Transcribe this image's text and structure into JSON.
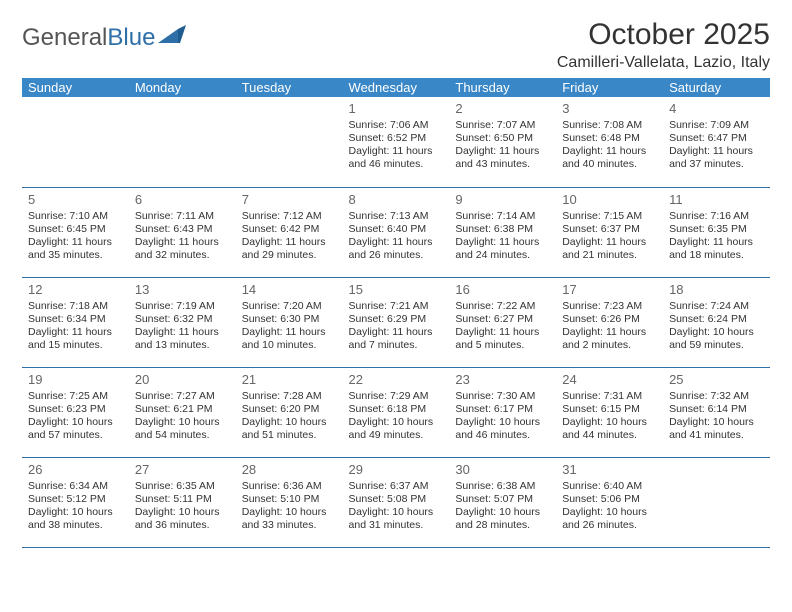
{
  "logo": {
    "text_gray": "General",
    "text_blue": "Blue"
  },
  "title": "October 2025",
  "location": "Camilleri-Vallelata, Lazio, Italy",
  "colors": {
    "header_bg": "#3a87c7",
    "header_text": "#ffffff",
    "rule": "#2f6fa8",
    "body_text": "#333333",
    "logo_blue": "#2f6fa8"
  },
  "typography": {
    "title_fontsize": 30,
    "location_fontsize": 16,
    "dayheader_fontsize": 13,
    "daynum_fontsize": 13,
    "cell_fontsize": 10.5
  },
  "day_headers": [
    "Sunday",
    "Monday",
    "Tuesday",
    "Wednesday",
    "Thursday",
    "Friday",
    "Saturday"
  ],
  "weeks": [
    [
      {
        "num": "",
        "sunrise": "",
        "sunset": "",
        "daylight": ""
      },
      {
        "num": "",
        "sunrise": "",
        "sunset": "",
        "daylight": ""
      },
      {
        "num": "",
        "sunrise": "",
        "sunset": "",
        "daylight": ""
      },
      {
        "num": "1",
        "sunrise": "Sunrise: 7:06 AM",
        "sunset": "Sunset: 6:52 PM",
        "daylight": "Daylight: 11 hours and 46 minutes."
      },
      {
        "num": "2",
        "sunrise": "Sunrise: 7:07 AM",
        "sunset": "Sunset: 6:50 PM",
        "daylight": "Daylight: 11 hours and 43 minutes."
      },
      {
        "num": "3",
        "sunrise": "Sunrise: 7:08 AM",
        "sunset": "Sunset: 6:48 PM",
        "daylight": "Daylight: 11 hours and 40 minutes."
      },
      {
        "num": "4",
        "sunrise": "Sunrise: 7:09 AM",
        "sunset": "Sunset: 6:47 PM",
        "daylight": "Daylight: 11 hours and 37 minutes."
      }
    ],
    [
      {
        "num": "5",
        "sunrise": "Sunrise: 7:10 AM",
        "sunset": "Sunset: 6:45 PM",
        "daylight": "Daylight: 11 hours and 35 minutes."
      },
      {
        "num": "6",
        "sunrise": "Sunrise: 7:11 AM",
        "sunset": "Sunset: 6:43 PM",
        "daylight": "Daylight: 11 hours and 32 minutes."
      },
      {
        "num": "7",
        "sunrise": "Sunrise: 7:12 AM",
        "sunset": "Sunset: 6:42 PM",
        "daylight": "Daylight: 11 hours and 29 minutes."
      },
      {
        "num": "8",
        "sunrise": "Sunrise: 7:13 AM",
        "sunset": "Sunset: 6:40 PM",
        "daylight": "Daylight: 11 hours and 26 minutes."
      },
      {
        "num": "9",
        "sunrise": "Sunrise: 7:14 AM",
        "sunset": "Sunset: 6:38 PM",
        "daylight": "Daylight: 11 hours and 24 minutes."
      },
      {
        "num": "10",
        "sunrise": "Sunrise: 7:15 AM",
        "sunset": "Sunset: 6:37 PM",
        "daylight": "Daylight: 11 hours and 21 minutes."
      },
      {
        "num": "11",
        "sunrise": "Sunrise: 7:16 AM",
        "sunset": "Sunset: 6:35 PM",
        "daylight": "Daylight: 11 hours and 18 minutes."
      }
    ],
    [
      {
        "num": "12",
        "sunrise": "Sunrise: 7:18 AM",
        "sunset": "Sunset: 6:34 PM",
        "daylight": "Daylight: 11 hours and 15 minutes."
      },
      {
        "num": "13",
        "sunrise": "Sunrise: 7:19 AM",
        "sunset": "Sunset: 6:32 PM",
        "daylight": "Daylight: 11 hours and 13 minutes."
      },
      {
        "num": "14",
        "sunrise": "Sunrise: 7:20 AM",
        "sunset": "Sunset: 6:30 PM",
        "daylight": "Daylight: 11 hours and 10 minutes."
      },
      {
        "num": "15",
        "sunrise": "Sunrise: 7:21 AM",
        "sunset": "Sunset: 6:29 PM",
        "daylight": "Daylight: 11 hours and 7 minutes."
      },
      {
        "num": "16",
        "sunrise": "Sunrise: 7:22 AM",
        "sunset": "Sunset: 6:27 PM",
        "daylight": "Daylight: 11 hours and 5 minutes."
      },
      {
        "num": "17",
        "sunrise": "Sunrise: 7:23 AM",
        "sunset": "Sunset: 6:26 PM",
        "daylight": "Daylight: 11 hours and 2 minutes."
      },
      {
        "num": "18",
        "sunrise": "Sunrise: 7:24 AM",
        "sunset": "Sunset: 6:24 PM",
        "daylight": "Daylight: 10 hours and 59 minutes."
      }
    ],
    [
      {
        "num": "19",
        "sunrise": "Sunrise: 7:25 AM",
        "sunset": "Sunset: 6:23 PM",
        "daylight": "Daylight: 10 hours and 57 minutes."
      },
      {
        "num": "20",
        "sunrise": "Sunrise: 7:27 AM",
        "sunset": "Sunset: 6:21 PM",
        "daylight": "Daylight: 10 hours and 54 minutes."
      },
      {
        "num": "21",
        "sunrise": "Sunrise: 7:28 AM",
        "sunset": "Sunset: 6:20 PM",
        "daylight": "Daylight: 10 hours and 51 minutes."
      },
      {
        "num": "22",
        "sunrise": "Sunrise: 7:29 AM",
        "sunset": "Sunset: 6:18 PM",
        "daylight": "Daylight: 10 hours and 49 minutes."
      },
      {
        "num": "23",
        "sunrise": "Sunrise: 7:30 AM",
        "sunset": "Sunset: 6:17 PM",
        "daylight": "Daylight: 10 hours and 46 minutes."
      },
      {
        "num": "24",
        "sunrise": "Sunrise: 7:31 AM",
        "sunset": "Sunset: 6:15 PM",
        "daylight": "Daylight: 10 hours and 44 minutes."
      },
      {
        "num": "25",
        "sunrise": "Sunrise: 7:32 AM",
        "sunset": "Sunset: 6:14 PM",
        "daylight": "Daylight: 10 hours and 41 minutes."
      }
    ],
    [
      {
        "num": "26",
        "sunrise": "Sunrise: 6:34 AM",
        "sunset": "Sunset: 5:12 PM",
        "daylight": "Daylight: 10 hours and 38 minutes."
      },
      {
        "num": "27",
        "sunrise": "Sunrise: 6:35 AM",
        "sunset": "Sunset: 5:11 PM",
        "daylight": "Daylight: 10 hours and 36 minutes."
      },
      {
        "num": "28",
        "sunrise": "Sunrise: 6:36 AM",
        "sunset": "Sunset: 5:10 PM",
        "daylight": "Daylight: 10 hours and 33 minutes."
      },
      {
        "num": "29",
        "sunrise": "Sunrise: 6:37 AM",
        "sunset": "Sunset: 5:08 PM",
        "daylight": "Daylight: 10 hours and 31 minutes."
      },
      {
        "num": "30",
        "sunrise": "Sunrise: 6:38 AM",
        "sunset": "Sunset: 5:07 PM",
        "daylight": "Daylight: 10 hours and 28 minutes."
      },
      {
        "num": "31",
        "sunrise": "Sunrise: 6:40 AM",
        "sunset": "Sunset: 5:06 PM",
        "daylight": "Daylight: 10 hours and 26 minutes."
      },
      {
        "num": "",
        "sunrise": "",
        "sunset": "",
        "daylight": ""
      }
    ]
  ]
}
